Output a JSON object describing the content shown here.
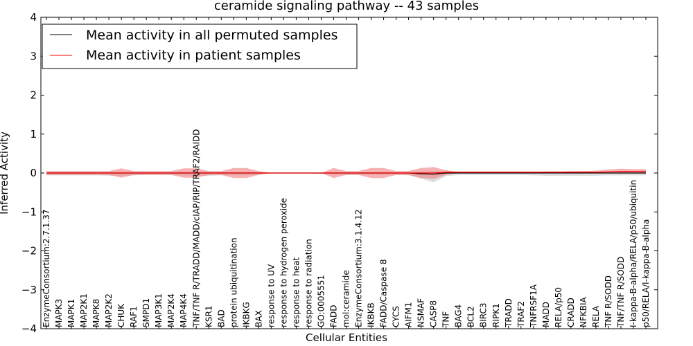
{
  "chart_data": {
    "type": "line",
    "title": "ceramide signaling pathway -- 43 samples",
    "xlabel": "Cellular Entities",
    "ylabel": "Inferred Activity",
    "ylim": [
      -4,
      4
    ],
    "yticks": [
      -4,
      -3,
      -2,
      -1,
      0,
      1,
      2,
      3,
      4
    ],
    "ytick_labels": [
      "−4",
      "−3",
      "−2",
      "−1",
      "0",
      "1",
      "2",
      "3",
      "4"
    ],
    "grid": false,
    "legend_position": "top-left",
    "colors": {
      "permuted": "#000000",
      "patient": "#ff0000",
      "patient_band": "#f08080",
      "permuted_band": "#c8c8c8"
    },
    "categories": [
      "EnzymeConsortium:2.7.1.37",
      "MAPK3",
      "MAPK1",
      "MAP2K1",
      "MAPK8",
      "MAP2K2",
      "CHUK",
      "RAF1",
      "SMPD1",
      "MAP3K1",
      "MAP2K4",
      "MAP4K4",
      "TNF/TNF R/TRADD/MADD/cIAP/RIP/TRAF2/RAIDD",
      "KSR1",
      "BAD",
      "protein ubiquitination",
      "IKBKG",
      "BAX",
      "response to UV",
      "response to hydrogen peroxide",
      "response to heat",
      "response to radiation",
      "GO:0005551",
      "FADD",
      "mol:ceramide",
      "EnzymeConsortium:3.1.4.12",
      "IKBKB",
      "FADD/Caspase 8",
      "CYCS",
      "AIFM1",
      "NSMAF",
      "CASP8",
      "TNF",
      "BAG4",
      "BCL2",
      "BIRC3",
      "RIPK1",
      "TRADD",
      "TRAF2",
      "TNFRSF1A",
      "MADD",
      "RELA/p50",
      "CRADD",
      "NFKBIA",
      "RELA",
      "TNF R/SODD",
      "TNF/TNF R/SODD",
      "I-kappa-B-alpha/RELA/p50/ubiquitin",
      "p50/RELA/I-kappa-B-alpha"
    ],
    "series": [
      {
        "name": "Mean activity in all permuted samples",
        "color": "#000000",
        "values": [
          0,
          0,
          0,
          0,
          0,
          0,
          0,
          0,
          0,
          0,
          0,
          0,
          0,
          0,
          0,
          0,
          0,
          0,
          0,
          0,
          0,
          0,
          0,
          0,
          0,
          0,
          0,
          0,
          0,
          0,
          -0.02,
          -0.03,
          0,
          0,
          0,
          0,
          0,
          0,
          0,
          0,
          0,
          0,
          0,
          0,
          0,
          0,
          0,
          0,
          0
        ],
        "band_upper": [
          0.03,
          0.03,
          0.03,
          0.03,
          0.03,
          0.04,
          0.04,
          0.04,
          0.03,
          0.03,
          0.03,
          0.04,
          0.04,
          0.04,
          0.03,
          0.03,
          0.03,
          0.02,
          0.01,
          0.01,
          0.01,
          0.01,
          0.01,
          0.02,
          0.02,
          0.02,
          0.02,
          0.02,
          0.02,
          0.03,
          0.04,
          0.05,
          0.03,
          0.03,
          0.03,
          0.03,
          0.03,
          0.03,
          0.03,
          0.03,
          0.03,
          0.03,
          0.03,
          0.03,
          0.03,
          0.03,
          0.03,
          0.03,
          0.03
        ],
        "band_lower": [
          -0.06,
          -0.06,
          -0.06,
          -0.06,
          -0.06,
          -0.07,
          -0.07,
          -0.06,
          -0.05,
          -0.05,
          -0.05,
          -0.06,
          -0.07,
          -0.07,
          -0.06,
          -0.06,
          -0.06,
          -0.04,
          -0.01,
          -0.01,
          -0.01,
          -0.01,
          -0.02,
          -0.04,
          -0.05,
          -0.05,
          -0.05,
          -0.05,
          -0.05,
          -0.06,
          -0.14,
          -0.24,
          -0.08,
          -0.05,
          -0.05,
          -0.05,
          -0.05,
          -0.05,
          -0.05,
          -0.06,
          -0.07,
          -0.07,
          -0.07,
          -0.07,
          -0.07,
          -0.06,
          -0.06,
          -0.06,
          -0.06
        ]
      },
      {
        "name": "Mean activity in patient samples",
        "color": "#ff0000",
        "values": [
          0,
          0,
          0,
          0,
          0,
          0,
          0,
          0,
          0,
          0,
          0,
          0,
          0,
          0,
          0,
          0,
          0,
          0,
          0,
          0,
          0,
          0,
          0,
          0,
          0,
          0,
          0,
          0,
          0,
          0,
          0,
          0,
          0.02,
          0.02,
          0.02,
          0.02,
          0.02,
          0.02,
          0.02,
          0.02,
          0.02,
          0.02,
          0.02,
          0.02,
          0.02,
          0.03,
          0.04,
          0.04,
          0.04
        ],
        "band_upper": [
          0.05,
          0.05,
          0.05,
          0.05,
          0.05,
          0.05,
          0.12,
          0.05,
          0.05,
          0.05,
          0.05,
          0.12,
          0.12,
          0.05,
          0.05,
          0.13,
          0.13,
          0.05,
          0,
          0,
          0,
          0,
          0,
          0.13,
          0.05,
          0.05,
          0.13,
          0.13,
          0.05,
          0.05,
          0.13,
          0.15,
          0.07,
          0.03,
          0.03,
          0.03,
          0.03,
          0.03,
          0.03,
          0.03,
          0.04,
          0.04,
          0.05,
          0.05,
          0.06,
          0.09,
          0.11,
          0.1,
          0.1
        ],
        "band_lower": [
          -0.05,
          -0.05,
          -0.05,
          -0.05,
          -0.05,
          -0.05,
          -0.12,
          -0.05,
          -0.05,
          -0.05,
          -0.05,
          -0.12,
          -0.12,
          -0.05,
          -0.05,
          -0.13,
          -0.13,
          -0.05,
          0,
          0,
          0,
          0,
          0,
          -0.13,
          -0.05,
          -0.05,
          -0.13,
          -0.13,
          -0.05,
          -0.05,
          -0.13,
          -0.15,
          -0.05,
          0,
          0,
          0,
          0,
          0,
          0,
          0,
          0,
          0,
          0,
          0,
          0,
          0,
          0,
          0,
          0
        ]
      }
    ],
    "legend": [
      {
        "label": "Mean activity in all permuted samples",
        "color": "#000000"
      },
      {
        "label": "Mean activity in patient samples",
        "color": "#ff0000"
      }
    ]
  }
}
